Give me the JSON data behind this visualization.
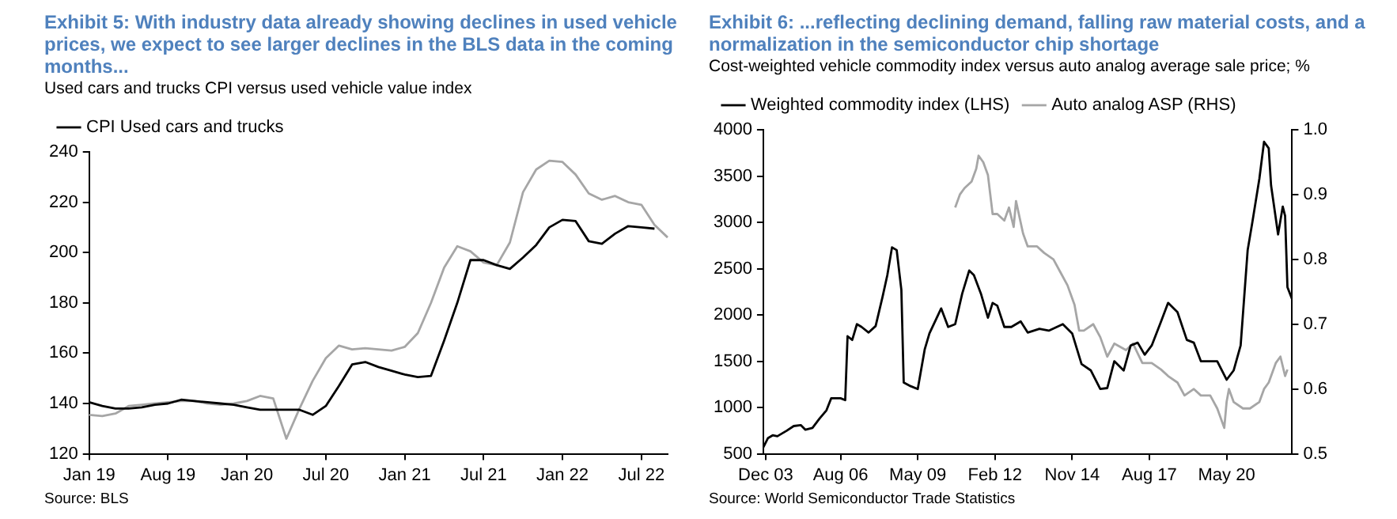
{
  "chart_data": [
    {
      "type": "line",
      "title": "Exhibit 5: With industry data already showing declines in used vehicle prices, we expect to see larger declines in the BLS data in the coming months...",
      "subtitle": "Used cars and trucks CPI versus used vehicle value index",
      "annotations": [
        "Source: BLS"
      ],
      "categories": [
        "Jan 19",
        null,
        null,
        null,
        null,
        null,
        "Aug 19",
        null,
        null,
        null,
        null,
        null,
        "Jan 20",
        null,
        null,
        null,
        null,
        null,
        "Jul 20",
        null,
        null,
        null,
        null,
        null,
        "Jan 21",
        null,
        null,
        null,
        null,
        null,
        "Jul 21",
        null,
        null,
        null,
        null,
        null,
        "Jan 22",
        null,
        null,
        null,
        null,
        null,
        "Jul 22",
        null,
        null
      ],
      "series": [
        {
          "name": "CPI Used cars and trucks",
          "color": "#000000",
          "values": [
            140.5,
            139,
            138,
            138,
            138.5,
            139.5,
            140,
            141.5,
            141,
            140.5,
            140,
            139.5,
            138.5,
            137.5,
            137.5,
            137.5,
            137.5,
            135.5,
            139,
            147,
            155.5,
            156.5,
            154.5,
            153,
            151.5,
            150.5,
            151,
            165,
            180,
            197,
            197,
            195,
            193.5,
            198,
            203,
            210,
            213,
            212.5,
            204.5,
            203.5,
            207.5,
            210.5,
            210,
            209.5,
            null
          ]
        },
        {
          "color": "#a6a6a6",
          "values": [
            135.5,
            135,
            136,
            139,
            139.5,
            140,
            140.5,
            141,
            141,
            140,
            139.5,
            140,
            141,
            143,
            142,
            126,
            138,
            149,
            158,
            163,
            161.5,
            162,
            161.5,
            161,
            162.5,
            168,
            180,
            194,
            202.5,
            200.5,
            196,
            195,
            204,
            224,
            233,
            236.5,
            236,
            231,
            223.5,
            221,
            222.5,
            220,
            219,
            211,
            206
          ]
        }
      ],
      "ylim": [
        120,
        240
      ],
      "yticks": [
        120,
        140,
        160,
        180,
        200,
        220,
        240
      ],
      "grid": false,
      "legend": "top left",
      "marker": "none"
    },
    {
      "type": "line",
      "title": "Exhibit 6: ...reflecting declining demand, falling raw material costs, and a normalization in the semiconductor chip shortage",
      "subtitle": "Cost-weighted vehicle commodity index versus auto analog average sale price; %",
      "annotations": [
        "Source: World Semiconductor Trade Statistics"
      ],
      "xlim": [
        "2003-11",
        "2022-09"
      ],
      "xticks": [
        {
          "value": "2003-12",
          "label": "Dec 03"
        },
        {
          "value": "2006-08",
          "label": "Aug 06"
        },
        {
          "value": "2009-05",
          "label": "May 09"
        },
        {
          "value": "2012-02",
          "label": "Feb 12"
        },
        {
          "value": "2014-11",
          "label": "Nov 14"
        },
        {
          "value": "2017-08",
          "label": "Aug 17"
        },
        {
          "value": "2020-05",
          "label": "May 20"
        }
      ],
      "series": [
        {
          "name": "Weighted commodity index (LHS)",
          "color": "#000000",
          "x": [
            "2003-11",
            "2004-01",
            "2004-03",
            "2004-05",
            "2004-09",
            "2004-12",
            "2005-03",
            "2005-05",
            "2005-08",
            "2005-11",
            "2006-02",
            "2006-04",
            "2006-08",
            "2006-10",
            "2006-11",
            "2007-01",
            "2007-03",
            "2007-05",
            "2007-08",
            "2007-11",
            "2008-02",
            "2008-04",
            "2008-06",
            "2008-08",
            "2008-10",
            "2008-11",
            "2009-02",
            "2009-05",
            "2009-08",
            "2009-10",
            "2010-03",
            "2010-06",
            "2010-09",
            "2010-12",
            "2011-03",
            "2011-05",
            "2011-08",
            "2011-11",
            "2012-01",
            "2012-03",
            "2012-06",
            "2012-09",
            "2013-01",
            "2013-04",
            "2013-09",
            "2014-01",
            "2014-07",
            "2014-11",
            "2015-03",
            "2015-07",
            "2015-11",
            "2016-02",
            "2016-05",
            "2016-09",
            "2016-12",
            "2017-03",
            "2017-06",
            "2017-09",
            "2018-01",
            "2018-04",
            "2018-08",
            "2018-12",
            "2019-03",
            "2019-06",
            "2019-11",
            "2020-01",
            "2020-05",
            "2020-08",
            "2020-11",
            "2021-02",
            "2021-04",
            "2021-07",
            "2021-09",
            "2021-11",
            "2021-12",
            "2022-03",
            "2022-05",
            "2022-06",
            "2022-07",
            "2022-09"
          ],
          "values": [
            570,
            670,
            700,
            690,
            750,
            800,
            810,
            760,
            780,
            880,
            970,
            1100,
            1100,
            1080,
            1770,
            1730,
            1900,
            1870,
            1810,
            1880,
            2200,
            2430,
            2730,
            2700,
            2270,
            1270,
            1230,
            1200,
            1630,
            1800,
            2070,
            1870,
            1900,
            2230,
            2480,
            2430,
            2230,
            1970,
            2130,
            2100,
            1870,
            1870,
            1930,
            1810,
            1850,
            1830,
            1900,
            1800,
            1470,
            1400,
            1200,
            1210,
            1500,
            1400,
            1670,
            1700,
            1570,
            1670,
            1930,
            2130,
            2030,
            1730,
            1700,
            1500,
            1500,
            1500,
            1300,
            1400,
            1670,
            2700,
            3000,
            3470,
            3870,
            3800,
            3400,
            2870,
            3170,
            3070,
            2300,
            2170
          ]
        },
        {
          "name": "Auto analog ASP (RHS)",
          "color": "#a6a6a6",
          "axis": "y2",
          "x": [
            "2010-09",
            "2010-11",
            "2011-01",
            "2011-04",
            "2011-06",
            "2011-07",
            "2011-09",
            "2011-11",
            "2012-01",
            "2012-03",
            "2012-06",
            "2012-08",
            "2012-10",
            "2012-11",
            "2013-02",
            "2013-04",
            "2013-08",
            "2013-11",
            "2014-03",
            "2014-06",
            "2014-09",
            "2014-12",
            "2015-02",
            "2015-04",
            "2015-08",
            "2015-11",
            "2016-02",
            "2016-05",
            "2016-10",
            "2017-01",
            "2017-05",
            "2017-09",
            "2018-01",
            "2018-04",
            "2018-08",
            "2018-11",
            "2019-03",
            "2019-06",
            "2019-10",
            "2020-01",
            "2020-04",
            "2020-05",
            "2020-06",
            "2020-08",
            "2020-12",
            "2021-03",
            "2021-07",
            "2021-09",
            "2021-11",
            "2022-02",
            "2022-04",
            "2022-06",
            "2022-07"
          ],
          "values": [
            0.88,
            0.9,
            0.91,
            0.92,
            0.94,
            0.96,
            0.95,
            0.93,
            0.87,
            0.87,
            0.86,
            0.88,
            0.85,
            0.89,
            0.84,
            0.82,
            0.82,
            0.81,
            0.8,
            0.78,
            0.76,
            0.73,
            0.69,
            0.69,
            0.7,
            0.68,
            0.65,
            0.67,
            0.66,
            0.67,
            0.64,
            0.64,
            0.63,
            0.62,
            0.61,
            0.59,
            0.6,
            0.59,
            0.59,
            0.57,
            0.54,
            0.58,
            0.6,
            0.58,
            0.57,
            0.57,
            0.58,
            0.6,
            0.61,
            0.64,
            0.65,
            0.62,
            0.63
          ]
        }
      ],
      "ylim": [
        500,
        4000
      ],
      "yticks": [
        500,
        1000,
        1500,
        2000,
        2500,
        3000,
        3500,
        4000
      ],
      "y2lim": [
        0.5,
        1.0
      ],
      "y2ticks": [
        {
          "value": 0.5,
          "label": "0.5"
        },
        {
          "value": 0.6,
          "label": "0.6"
        },
        {
          "value": 0.7,
          "label": "0.7"
        },
        {
          "value": 0.8,
          "label": "0.8"
        },
        {
          "value": 0.9,
          "label": "0.9"
        },
        {
          "value": 1.0,
          "label": "1.0"
        }
      ],
      "grid": false,
      "legend": "top left",
      "marker": "none"
    }
  ]
}
